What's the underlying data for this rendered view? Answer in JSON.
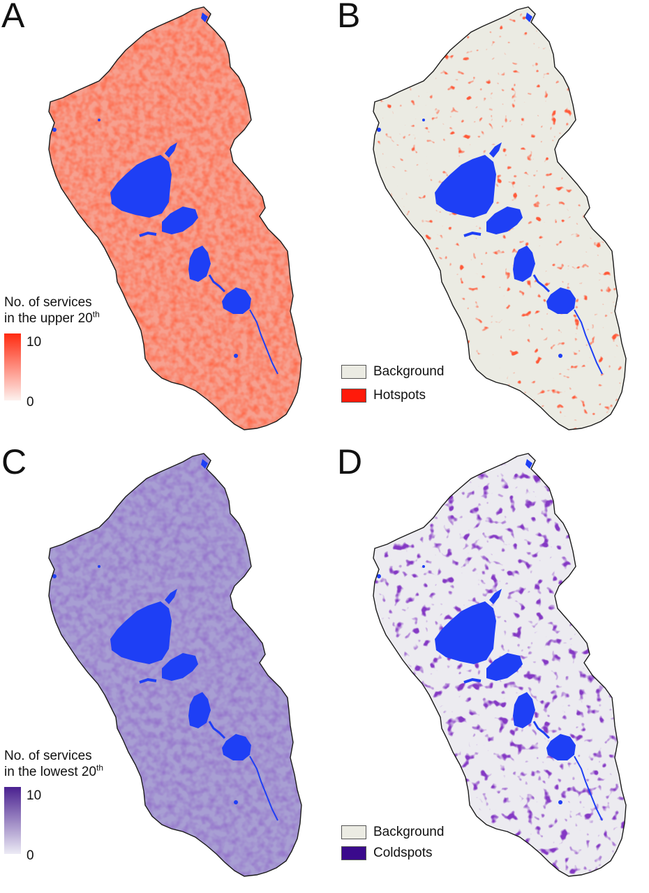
{
  "panels": {
    "a": {
      "letter": "A"
    },
    "b": {
      "letter": "B"
    },
    "c": {
      "letter": "C"
    },
    "d": {
      "letter": "D"
    }
  },
  "legend_a": {
    "line1": "No. of services",
    "line2_prefix": "in the upper 20",
    "line2_sup": "th",
    "max": "10",
    "min": "0",
    "color_high": "#ff2a10",
    "color_low": "#fdf1ee"
  },
  "legend_b": {
    "items": [
      {
        "label": "Background",
        "color": "#ebebe3"
      },
      {
        "label": "Hotspots",
        "color": "#ff1a0a"
      }
    ]
  },
  "legend_c": {
    "line1": "No. of services",
    "line2_prefix": "in the lowest 20",
    "line2_sup": "th",
    "max": "10",
    "min": "0",
    "color_high": "#4a2190",
    "color_low": "#ecebf5"
  },
  "legend_d": {
    "items": [
      {
        "label": "Background",
        "color": "#ebebe3"
      },
      {
        "label": "Coldspots",
        "color": "#3a0a8c"
      }
    ]
  },
  "colors": {
    "water": "#1e3ff5",
    "boundary": "#1a1a1a"
  }
}
